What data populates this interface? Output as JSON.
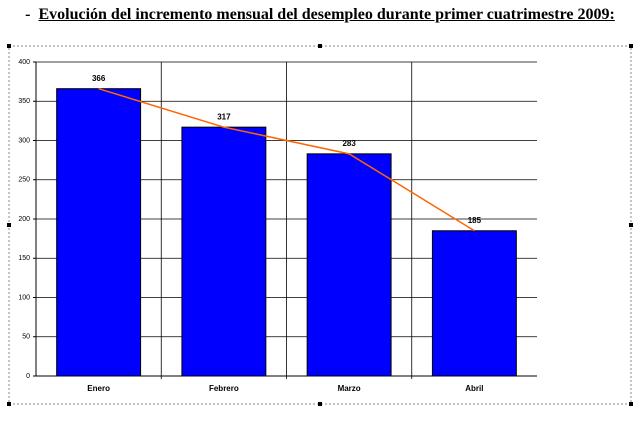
{
  "title_marker": "-",
  "chart_data": {
    "type": "bar",
    "title": "Evolución del incremento mensual del desempleo durante primer cuatrimestre 2009:",
    "categories": [
      "Enero",
      "Febrero",
      "Marzo",
      "Abril"
    ],
    "values": [
      366,
      317,
      283,
      185
    ],
    "color": "#0000ff",
    "line_color": "#ff6600",
    "line_overlay": true,
    "ylim": [
      0,
      400
    ],
    "yticks": [
      0,
      50,
      100,
      150,
      200,
      250,
      300,
      350,
      400
    ],
    "grid": true
  }
}
